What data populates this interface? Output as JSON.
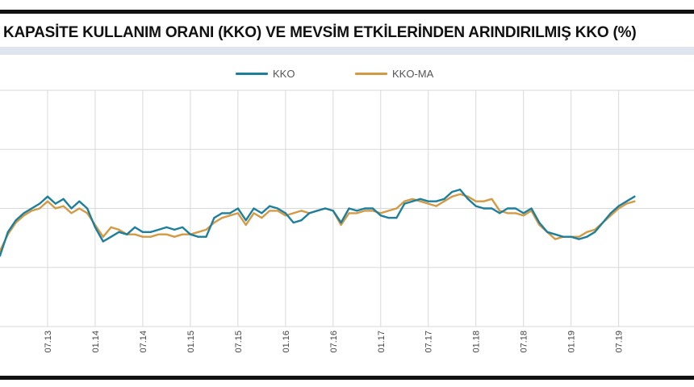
{
  "page": {
    "title": "KAPASİTE KULLANIM ORANI (KKO) VE MEVSİM ETKİLERİNDEN ARINDIRILMIŞ KKO (%)"
  },
  "colors": {
    "kko": "#1d7f9c",
    "kko_ma": "#d39a45",
    "grid": "#d9d9d9",
    "band": "#dfe5ee"
  },
  "legend": {
    "kko_label": "KKO",
    "kko_ma_label": "KKO-MA"
  },
  "chart_data": {
    "type": "line",
    "title": "KAPASİTE KULLANIM ORANI (KKO) VE MEVSİM ETKİLERİNDEN ARINDIRILMIŞ KKO (%)",
    "xlabel": "",
    "ylabel": "",
    "ylim": [
      70,
      80
    ],
    "grid": true,
    "legend_position": "top-center",
    "x_start_index": -6,
    "x_end_index": 81.5,
    "tick_labels": [
      "07.13",
      "01.14",
      "07.14",
      "01.15",
      "07.15",
      "01.16",
      "07.16",
      "01.17",
      "07.17",
      "01.18",
      "07.18",
      "01.19",
      "07.19"
    ],
    "tick_indices": [
      0,
      6,
      12,
      18,
      24,
      30,
      36,
      42,
      48,
      54,
      60,
      66,
      72
    ],
    "series": [
      {
        "name": "KKO",
        "x": [
          -6,
          -5,
          -4,
          -3,
          -2,
          -1,
          0,
          1,
          2,
          3,
          4,
          5,
          6,
          7,
          8,
          9,
          10,
          11,
          12,
          13,
          14,
          15,
          16,
          17,
          18,
          19,
          20,
          21,
          22,
          23,
          24,
          25,
          26,
          27,
          28,
          29,
          30,
          31,
          32,
          33,
          34,
          35,
          36,
          37,
          38,
          39,
          40,
          41,
          42,
          43,
          44,
          45,
          46,
          47,
          48,
          49,
          50,
          51,
          52,
          53,
          54,
          55,
          56,
          57,
          58,
          59,
          60,
          61,
          62,
          63,
          64,
          65,
          66,
          67,
          68,
          69,
          70,
          71,
          72,
          73,
          74
        ],
        "values": [
          73.0,
          74.0,
          74.5,
          74.8,
          75.0,
          75.2,
          75.5,
          75.2,
          75.4,
          75.0,
          75.3,
          75.0,
          74.2,
          73.6,
          73.8,
          74.0,
          73.9,
          74.2,
          74.0,
          74.0,
          74.1,
          74.2,
          74.1,
          74.2,
          73.9,
          73.8,
          73.8,
          74.6,
          74.8,
          74.8,
          75.0,
          74.5,
          75.0,
          74.8,
          75.1,
          75.0,
          74.8,
          74.4,
          74.5,
          74.8,
          74.9,
          75.0,
          74.9,
          74.4,
          75.0,
          74.9,
          75.0,
          75.0,
          74.7,
          74.6,
          74.6,
          75.2,
          75.3,
          75.4,
          75.3,
          75.3,
          75.4,
          75.7,
          75.8,
          75.4,
          75.1,
          75.0,
          75.0,
          74.8,
          75.0,
          75.0,
          74.8,
          75.0,
          74.4,
          74.0,
          73.9,
          73.8,
          73.8,
          73.7,
          73.8,
          74.0,
          74.4,
          74.8,
          75.1,
          75.3,
          75.5
        ]
      },
      {
        "name": "KKO-MA",
        "x": [
          -6,
          -5,
          -4,
          -3,
          -2,
          -1,
          0,
          1,
          2,
          3,
          4,
          5,
          6,
          7,
          8,
          9,
          10,
          11,
          12,
          13,
          14,
          15,
          16,
          17,
          18,
          19,
          20,
          21,
          22,
          23,
          24,
          25,
          26,
          27,
          28,
          29,
          30,
          31,
          32,
          33,
          34,
          35,
          36,
          37,
          38,
          39,
          40,
          41,
          42,
          43,
          44,
          45,
          46,
          47,
          48,
          49,
          50,
          51,
          52,
          53,
          54,
          55,
          56,
          57,
          58,
          59,
          60,
          61,
          62,
          63,
          64,
          65,
          66,
          67,
          68,
          69,
          70,
          71,
          72,
          73,
          74
        ],
        "values": [
          73.2,
          73.9,
          74.4,
          74.7,
          74.9,
          75.0,
          75.3,
          75.0,
          75.1,
          74.8,
          75.0,
          74.8,
          74.3,
          73.8,
          74.2,
          74.1,
          73.9,
          73.9,
          73.8,
          73.8,
          73.9,
          73.9,
          73.8,
          73.9,
          73.9,
          74.0,
          74.1,
          74.4,
          74.6,
          74.7,
          74.8,
          74.3,
          74.8,
          74.6,
          74.9,
          74.9,
          74.7,
          74.8,
          74.9,
          74.8,
          74.9,
          75.0,
          74.9,
          74.3,
          74.8,
          74.8,
          74.9,
          74.9,
          74.8,
          74.9,
          75.0,
          75.3,
          75.4,
          75.3,
          75.2,
          75.1,
          75.3,
          75.5,
          75.6,
          75.5,
          75.3,
          75.3,
          75.4,
          74.9,
          74.8,
          74.8,
          74.7,
          74.9,
          74.3,
          74.0,
          73.7,
          73.8,
          73.8,
          73.8,
          74.0,
          74.1,
          74.4,
          74.7,
          75.0,
          75.2,
          75.3
        ]
      }
    ]
  }
}
